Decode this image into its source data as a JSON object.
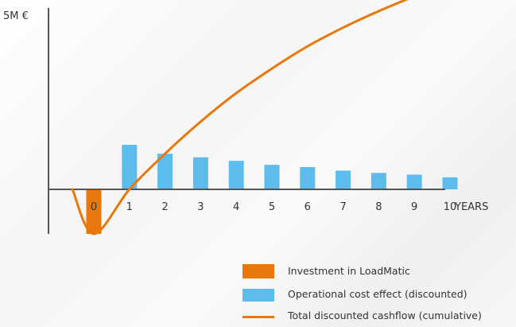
{
  "chart_data": {
    "type": "bar",
    "title": "",
    "xlabel": "YEARS",
    "ylabel": "",
    "y_top_label": "5M €",
    "ylim": [
      -1.0,
      4.75
    ],
    "x": [
      0,
      1,
      2,
      3,
      4,
      5,
      6,
      7,
      8,
      9,
      10
    ],
    "x_tick_labels": [
      "0",
      "1",
      "2",
      "3",
      "4",
      "5",
      "6",
      "7",
      "8",
      "9",
      "10"
    ],
    "grid": false,
    "legend_position": "bottom-right",
    "series": [
      {
        "name": "Investment in LoadMatic",
        "type": "bar",
        "color": "#e8780c",
        "x": [
          0
        ],
        "values": [
          -1.0
        ]
      },
      {
        "name": "Operational cost effect (discounted)",
        "type": "bar",
        "color": "#5dbcec",
        "x": [
          1,
          2,
          3,
          4,
          5,
          6,
          7,
          8,
          9,
          10
        ],
        "values": [
          1.0,
          0.8,
          0.72,
          0.64,
          0.55,
          0.5,
          0.42,
          0.37,
          0.33,
          0.27
        ]
      },
      {
        "name": "Total discounted cashflow (cumulative)",
        "type": "line",
        "color": "#e8780c",
        "x": [
          -0.6,
          0,
          1,
          2,
          3,
          4,
          5,
          6,
          7,
          8,
          9,
          10,
          10.3
        ],
        "values": [
          0.0,
          -1.0,
          0.0,
          0.8,
          1.52,
          2.16,
          2.71,
          3.21,
          3.63,
          4.0,
          4.33,
          4.6,
          4.75
        ]
      }
    ]
  }
}
